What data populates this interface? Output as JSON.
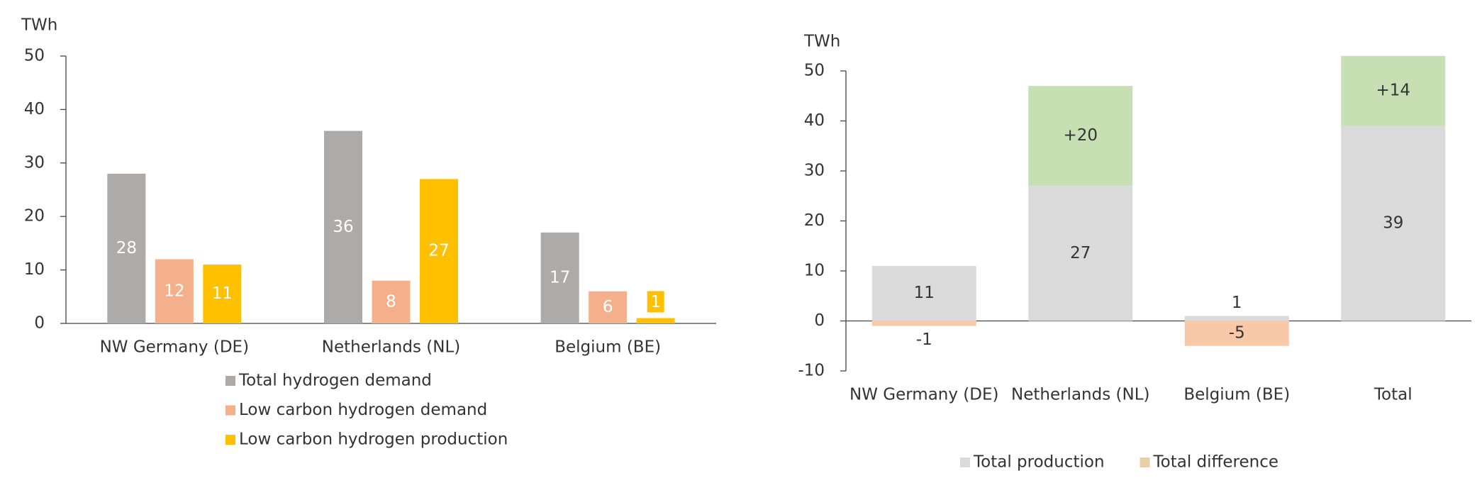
{
  "chart_data": [
    {
      "type": "bar",
      "y_label": "TWh",
      "categories": [
        "NW Germany (DE)",
        "Netherlands (NL)",
        "Belgium (BE)"
      ],
      "series": [
        {
          "name": "Total hydrogen demand",
          "color": "#aeaaa8",
          "values": [
            28,
            36,
            17
          ]
        },
        {
          "name": "Low carbon hydrogen demand",
          "color": "#f4b08a",
          "values": [
            12,
            8,
            6
          ]
        },
        {
          "name": "Low carbon hydrogen production",
          "color": "#ffc000",
          "values": [
            11,
            27,
            1
          ]
        }
      ],
      "ylim": [
        0,
        50
      ],
      "yticks": [
        0,
        10,
        20,
        30,
        40,
        50
      ],
      "legend": "bottom-vertical"
    },
    {
      "type": "stacked_bar",
      "y_label": "TWh",
      "categories": [
        "NW Germany (DE)",
        "Netherlands (NL)",
        "Belgium (BE)",
        "Total"
      ],
      "series": [
        {
          "name": "Total production",
          "color": "#dadada",
          "values": [
            11,
            27,
            1,
            39
          ]
        },
        {
          "name": "Total difference",
          "color": "#e8cfa6",
          "values": [
            -1,
            20,
            -5,
            14
          ],
          "value_labels": [
            "-1",
            "+20",
            "-5",
            "+14"
          ],
          "point_colors": [
            "#f8c8a8",
            "#c6e0b4",
            "#f8c8a8",
            "#c6e0b4"
          ]
        }
      ],
      "ylim": [
        -10,
        50
      ],
      "yticks": [
        -10,
        0,
        10,
        20,
        30,
        40,
        50
      ],
      "legend": "bottom-horizontal"
    }
  ]
}
